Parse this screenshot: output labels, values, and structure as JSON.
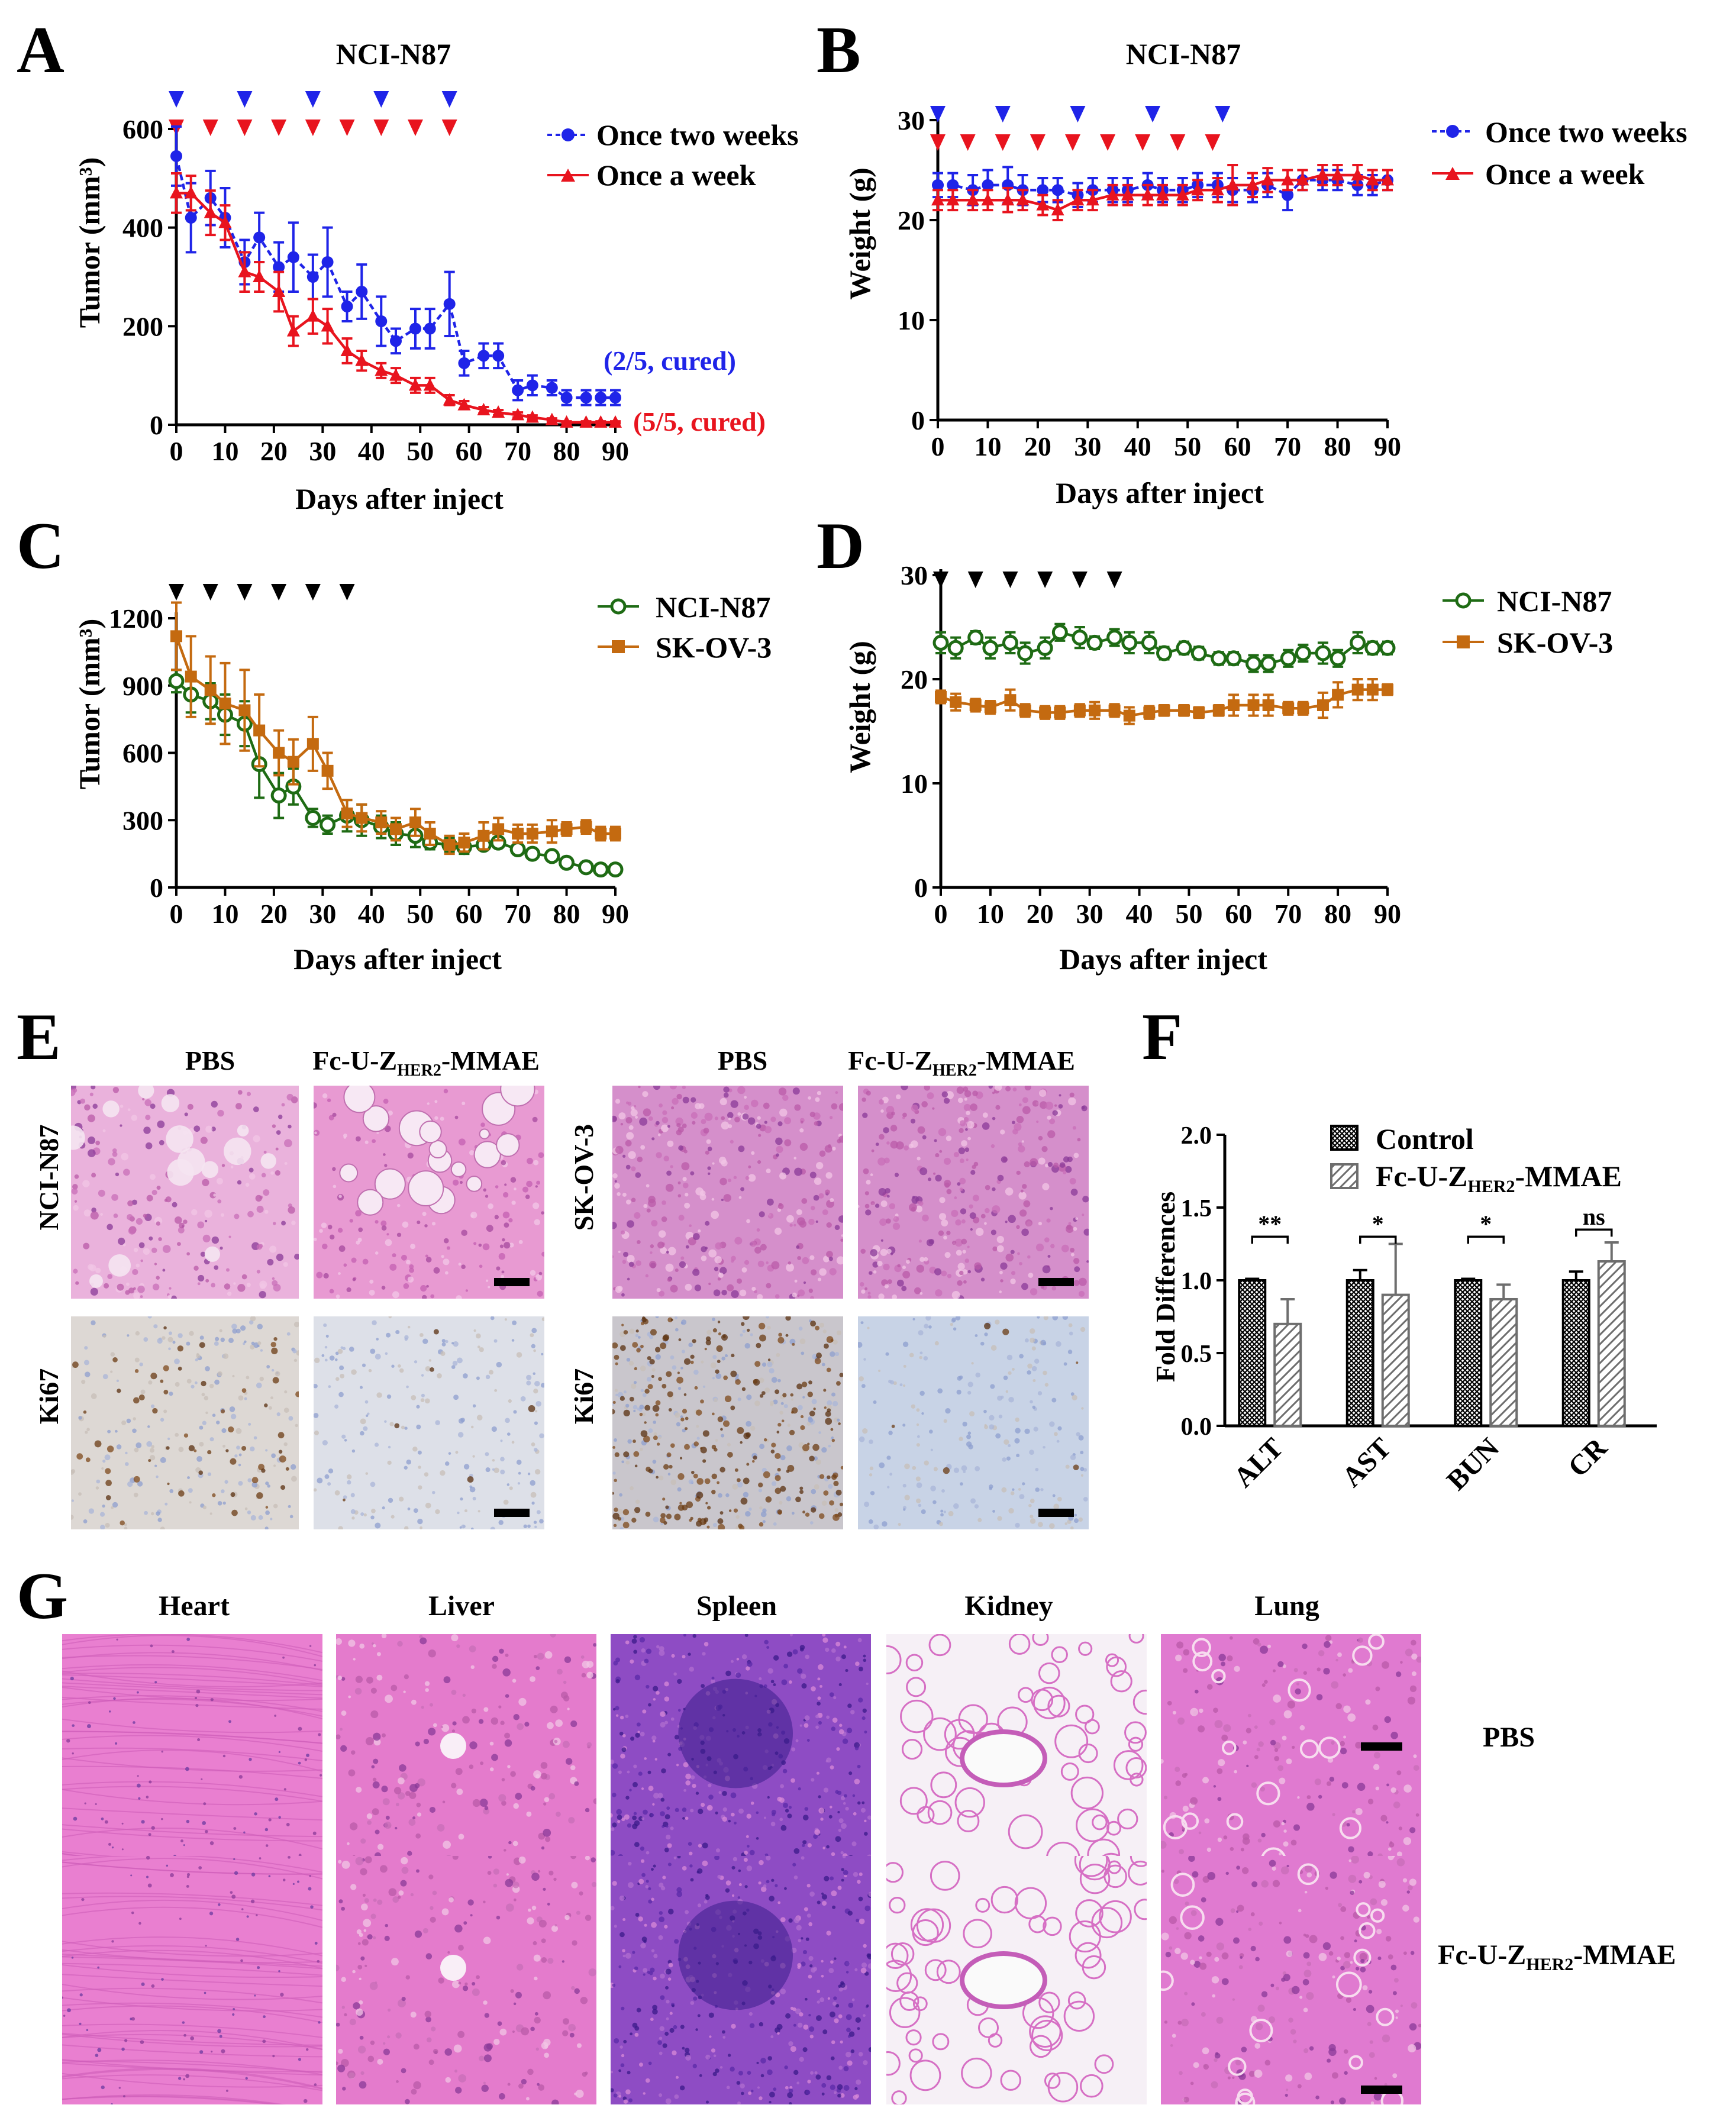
{
  "colors": {
    "blue": "#1f24e8",
    "red": "#e8141e",
    "green": "#1e6b14",
    "orange": "#c46a10",
    "black": "#000000",
    "he_pink": "#e27ac7",
    "he_purple": "#6a3ab8",
    "ki67_bg": "#dcdde2",
    "ki67_brown": "#6b3c14"
  },
  "panel_labels": {
    "a": "A",
    "b": "B",
    "c": "C",
    "d": "D",
    "e": "E",
    "f": "F",
    "g": "G"
  },
  "chart_data": [
    {
      "id": "A",
      "type": "line",
      "title": "NCI-N87",
      "xlabel": "Days after inject",
      "ylabel": "Tumor (mm³)",
      "xlim": [
        0,
        90
      ],
      "ylim": [
        0,
        600
      ],
      "xticks": [
        0,
        10,
        20,
        30,
        40,
        50,
        60,
        70,
        80,
        90
      ],
      "yticks": [
        0,
        200,
        400,
        600
      ],
      "dose_markers": [
        {
          "color": "blue",
          "days": [
            0,
            14,
            28,
            42,
            56
          ]
        },
        {
          "color": "red",
          "days": [
            0,
            7,
            14,
            21,
            28,
            35,
            42,
            49,
            56
          ]
        }
      ],
      "series": [
        {
          "name": "Once two weeks",
          "color": "blue",
          "marker": "circle",
          "x": [
            0,
            3,
            7,
            10,
            14,
            17,
            21,
            24,
            28,
            31,
            35,
            38,
            42,
            45,
            49,
            52,
            56,
            59,
            63,
            66,
            70,
            73,
            77,
            80,
            84,
            87,
            90
          ],
          "y": [
            545,
            420,
            460,
            420,
            330,
            380,
            320,
            340,
            300,
            330,
            240,
            270,
            210,
            170,
            195,
            195,
            245,
            125,
            140,
            140,
            70,
            80,
            75,
            55,
            55,
            55,
            55
          ],
          "err": [
            60,
            70,
            55,
            60,
            45,
            50,
            50,
            70,
            45,
            70,
            30,
            55,
            50,
            25,
            40,
            40,
            65,
            25,
            25,
            25,
            20,
            20,
            15,
            15,
            15,
            15,
            15
          ]
        },
        {
          "name": "Once a week",
          "color": "red",
          "marker": "triangle",
          "x": [
            0,
            3,
            7,
            10,
            14,
            17,
            21,
            24,
            28,
            31,
            35,
            38,
            42,
            45,
            49,
            52,
            56,
            59,
            63,
            66,
            70,
            73,
            77,
            80,
            84,
            87,
            90
          ],
          "y": [
            470,
            470,
            430,
            410,
            310,
            300,
            270,
            190,
            220,
            200,
            150,
            130,
            110,
            100,
            80,
            80,
            50,
            40,
            30,
            25,
            20,
            15,
            10,
            5,
            5,
            5,
            5
          ],
          "err": [
            40,
            35,
            45,
            35,
            40,
            30,
            40,
            30,
            35,
            35,
            25,
            20,
            15,
            15,
            15,
            15,
            10,
            8,
            6,
            5,
            5,
            4,
            3,
            2,
            2,
            2,
            2
          ]
        }
      ],
      "annotations": [
        {
          "text": "(2/5, cured)",
          "color": "blue"
        },
        {
          "text": "(5/5, cured)",
          "color": "red"
        }
      ]
    },
    {
      "id": "B",
      "type": "line",
      "title": "NCI-N87",
      "xlabel": "Days after inject",
      "ylabel": "Weight (g)",
      "xlim": [
        0,
        90
      ],
      "ylim": [
        0,
        30
      ],
      "xticks": [
        0,
        10,
        20,
        30,
        40,
        50,
        60,
        70,
        80,
        90
      ],
      "yticks": [
        0,
        10,
        20,
        30
      ],
      "dose_markers": [
        {
          "color": "blue",
          "days": [
            0,
            13,
            28,
            43,
            57
          ]
        },
        {
          "color": "red",
          "days": [
            0,
            6,
            13,
            20,
            27,
            34,
            41,
            48,
            55
          ]
        }
      ],
      "series": [
        {
          "name": "Once two weeks",
          "color": "blue",
          "marker": "circle",
          "x": [
            0,
            3,
            7,
            10,
            14,
            17,
            21,
            24,
            28,
            31,
            35,
            38,
            42,
            45,
            49,
            52,
            56,
            59,
            63,
            66,
            70,
            73,
            77,
            80,
            84,
            87,
            90
          ],
          "y": [
            23.5,
            23.5,
            23,
            23.5,
            23.5,
            23,
            23,
            23,
            22.5,
            23,
            23,
            23,
            23.5,
            23,
            23,
            23.5,
            23.5,
            23,
            23,
            23.5,
            22.5,
            24,
            24,
            24,
            23.5,
            23.5,
            24
          ],
          "err": [
            1.2,
            1.2,
            1.5,
            1.5,
            1.8,
            1.5,
            1.2,
            1.2,
            1.2,
            1.2,
            1.2,
            1.2,
            1.2,
            1.2,
            1.2,
            1.2,
            1.2,
            1.2,
            1.2,
            1.2,
            1.5,
            1,
            1,
            1,
            1,
            1,
            1
          ]
        },
        {
          "name": "Once a week",
          "color": "red",
          "marker": "triangle",
          "x": [
            0,
            3,
            7,
            10,
            14,
            17,
            21,
            24,
            28,
            31,
            35,
            38,
            42,
            45,
            49,
            52,
            56,
            59,
            63,
            66,
            70,
            73,
            77,
            80,
            84,
            87,
            90
          ],
          "y": [
            22,
            22,
            22,
            22,
            22,
            22,
            21.5,
            21,
            22,
            22,
            22.5,
            22.5,
            22.5,
            22.5,
            22.5,
            23,
            23,
            23.5,
            23.5,
            24,
            24,
            24,
            24.5,
            24.5,
            24.5,
            24,
            24
          ],
          "err": [
            1,
            1,
            1,
            1,
            1.2,
            1,
            1,
            1,
            1,
            1,
            1,
            1,
            1,
            1,
            1,
            1,
            1.2,
            2,
            1.2,
            1.2,
            1,
            1,
            1,
            1,
            1,
            1,
            1
          ]
        }
      ]
    },
    {
      "id": "C",
      "type": "line",
      "xlabel": "Days after inject",
      "ylabel": "Tumor (mm³)",
      "xlim": [
        0,
        90
      ],
      "ylim": [
        0,
        1200
      ],
      "xticks": [
        0,
        10,
        20,
        30,
        40,
        50,
        60,
        70,
        80,
        90
      ],
      "yticks": [
        0,
        300,
        600,
        900,
        1200
      ],
      "dose_markers": [
        {
          "color": "black",
          "days": [
            0,
            7,
            14,
            21,
            28,
            35
          ]
        }
      ],
      "series": [
        {
          "name": "NCI-N87",
          "color": "green",
          "marker": "open-circle",
          "x": [
            0,
            3,
            7,
            10,
            14,
            17,
            21,
            24,
            28,
            31,
            35,
            38,
            42,
            45,
            49,
            52,
            56,
            59,
            63,
            66,
            70,
            73,
            77,
            80,
            84,
            87,
            90
          ],
          "y": [
            920,
            860,
            830,
            770,
            730,
            550,
            410,
            450,
            310,
            280,
            320,
            300,
            270,
            240,
            230,
            200,
            190,
            180,
            190,
            200,
            170,
            150,
            140,
            110,
            90,
            80,
            80
          ],
          "err": [
            50,
            80,
            80,
            90,
            100,
            150,
            100,
            80,
            40,
            40,
            70,
            70,
            50,
            50,
            50,
            30,
            30,
            30,
            20,
            20,
            20,
            20,
            20,
            15,
            10,
            10,
            10
          ]
        },
        {
          "name": "SK-OV-3",
          "color": "orange",
          "marker": "square",
          "x": [
            0,
            3,
            7,
            10,
            14,
            17,
            21,
            24,
            28,
            31,
            35,
            38,
            42,
            45,
            49,
            52,
            56,
            59,
            63,
            66,
            70,
            73,
            77,
            80,
            84,
            87,
            90
          ],
          "y": [
            1120,
            940,
            880,
            820,
            790,
            700,
            600,
            560,
            640,
            520,
            330,
            310,
            290,
            260,
            290,
            240,
            190,
            200,
            230,
            260,
            240,
            240,
            250,
            260,
            270,
            240,
            240
          ],
          "err": [
            150,
            180,
            150,
            180,
            180,
            160,
            100,
            100,
            120,
            80,
            60,
            60,
            50,
            50,
            60,
            50,
            40,
            40,
            60,
            50,
            40,
            40,
            50,
            30,
            30,
            30,
            30
          ]
        }
      ]
    },
    {
      "id": "D",
      "type": "line",
      "xlabel": "Days after inject",
      "ylabel": "Weight (g)",
      "xlim": [
        0,
        90
      ],
      "ylim": [
        0,
        30
      ],
      "xticks": [
        0,
        10,
        20,
        30,
        40,
        50,
        60,
        70,
        80,
        90
      ],
      "yticks": [
        0,
        10,
        20,
        30
      ],
      "dose_markers": [
        {
          "color": "black",
          "days": [
            0,
            7,
            14,
            21,
            28,
            35
          ]
        }
      ],
      "series": [
        {
          "name": "NCI-N87",
          "color": "green",
          "marker": "open-circle",
          "x": [
            0,
            3,
            7,
            10,
            14,
            17,
            21,
            24,
            28,
            31,
            35,
            38,
            42,
            45,
            49,
            52,
            56,
            59,
            63,
            66,
            70,
            73,
            77,
            80,
            84,
            87,
            90
          ],
          "y": [
            23.5,
            23,
            24,
            23,
            23.5,
            22.5,
            23,
            24.5,
            24,
            23.5,
            24,
            23.5,
            23.5,
            22.5,
            23,
            22.5,
            22,
            22,
            21.5,
            21.5,
            22,
            22.5,
            22.5,
            22,
            23.5,
            23,
            23
          ],
          "err": [
            1,
            1,
            0.6,
            1,
            1,
            1,
            1,
            0.8,
            1,
            0.6,
            0.8,
            1,
            1,
            0.6,
            0.6,
            0.6,
            0.6,
            0.6,
            0.8,
            0.8,
            0.8,
            0.8,
            1,
            0.8,
            1,
            0.6,
            0.6
          ]
        },
        {
          "name": "SK-OV-3",
          "color": "orange",
          "marker": "square",
          "x": [
            0,
            3,
            7,
            10,
            14,
            17,
            21,
            24,
            28,
            31,
            35,
            38,
            42,
            45,
            49,
            52,
            56,
            59,
            63,
            66,
            70,
            73,
            77,
            80,
            84,
            87,
            90
          ],
          "y": [
            18.3,
            17.8,
            17.5,
            17.3,
            18,
            17,
            16.8,
            16.8,
            17,
            17,
            17,
            16.5,
            16.8,
            17,
            17,
            16.8,
            17,
            17.5,
            17.5,
            17.5,
            17.2,
            17.2,
            17.5,
            18.5,
            19,
            19,
            19
          ],
          "err": [
            0.6,
            0.8,
            0.6,
            0.6,
            1,
            0.6,
            0.6,
            0.6,
            0.6,
            0.8,
            0.6,
            0.8,
            0.6,
            0.5,
            0.5,
            0.5,
            0.5,
            1,
            1,
            1,
            0.6,
            0.6,
            1.2,
            1.2,
            1,
            1,
            0.5
          ]
        }
      ]
    },
    {
      "id": "F",
      "type": "bar",
      "ylabel": "Fold Differences",
      "ylim": [
        0,
        2.0
      ],
      "yticks": [
        0.0,
        0.5,
        1.0,
        1.5,
        2.0
      ],
      "categories": [
        "ALT",
        "AST",
        "BUN",
        "CR"
      ],
      "series": [
        {
          "name": "Control",
          "pattern": "crosshatch",
          "values": [
            1.0,
            1.0,
            1.0,
            1.0
          ],
          "err": [
            0.01,
            0.07,
            0.01,
            0.06
          ]
        },
        {
          "name": "Fc-U-Z-HER2-MMAE",
          "pattern": "diagonal",
          "values": [
            0.7,
            0.9,
            0.87,
            1.13
          ],
          "err": [
            0.17,
            0.35,
            0.1,
            0.13
          ]
        }
      ],
      "significance": [
        "**",
        "*",
        "*",
        "ns"
      ]
    }
  ],
  "legends": {
    "a": [
      "Once two weeks",
      "Once a week"
    ],
    "b": [
      "Once two weeks",
      "Once a week"
    ],
    "c": [
      "NCI-N87",
      "SK-OV-3"
    ],
    "d": [
      "NCI-N87",
      "SK-OV-3"
    ],
    "f": {
      "control": "Control",
      "treat_base": "Fc-U-Z",
      "treat_sub": "HER2",
      "treat_suffix": "-MMAE"
    }
  },
  "panel_e": {
    "col_pbs": "PBS",
    "col_treat_base": "Fc-U-Z",
    "col_treat_sub": "HER2",
    "col_treat_suffix": "-MMAE",
    "row_left_he": "NCI-N87",
    "row_right_he": "SK-OV-3",
    "row_ki67": "Ki67"
  },
  "panel_g": {
    "organs": [
      "Heart",
      "Liver",
      "Spleen",
      "Kidney",
      "Lung"
    ],
    "row_pbs": "PBS",
    "row_treat_base": "Fc-U-Z",
    "row_treat_sub": "HER2",
    "row_treat_suffix": "-MMAE"
  }
}
